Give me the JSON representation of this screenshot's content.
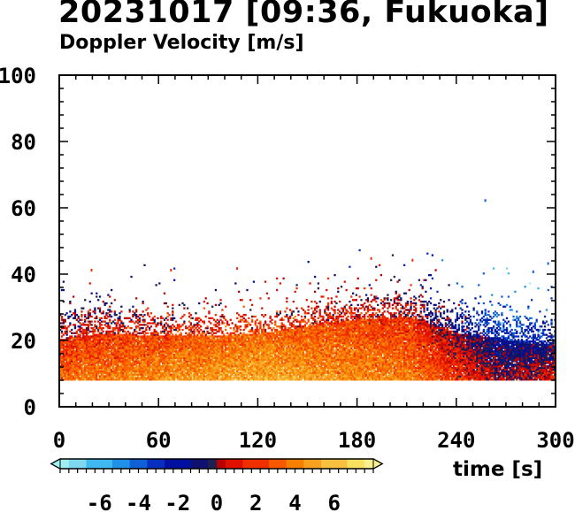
{
  "title": "20231017 [09:36, Fukuoka]",
  "subtitle": "Doppler Velocity [m/s]",
  "colors": {
    "background": "#ffffff",
    "axis": "#000000",
    "palette_neg": [
      "#a0f0f0",
      "#7fd8f0",
      "#40b8f0",
      "#2090e8",
      "#1060d8",
      "#0830c0",
      "#0010a0",
      "#101070",
      "#202050"
    ],
    "palette_pos": [
      "#b80000",
      "#e01000",
      "#f03000",
      "#f85800",
      "#f88000",
      "#f8a020",
      "#f8c040",
      "#f8e060",
      "#f8f090"
    ]
  },
  "chart_data": {
    "type": "heatmap",
    "title": "20231017 [09:36, Fukuoka]",
    "subtitle": "Doppler Velocity [m/s]",
    "xlabel": "time [s]",
    "ylabel": "",
    "xlim": [
      0,
      300
    ],
    "ylim": [
      0,
      100
    ],
    "xticks": [
      "0",
      "60",
      "120",
      "180",
      "240",
      "300"
    ],
    "yticks": [
      "0",
      "20",
      "40",
      "60",
      "80",
      "100"
    ],
    "grid": false,
    "colorbar": {
      "ticks": [
        "-6",
        "-4",
        "-2",
        "0",
        "2",
        "4",
        "6"
      ],
      "range": [
        -8,
        8
      ],
      "orientation": "horizontal",
      "placement": "bottom-left"
    },
    "echo_bottom_height": 8,
    "echo_region": [
      {
        "t": 0,
        "top": 28,
        "dense_top": 20,
        "mean_velocity": 0.5
      },
      {
        "t": 30,
        "top": 30,
        "dense_top": 22,
        "mean_velocity": 1.0
      },
      {
        "t": 60,
        "top": 28,
        "dense_top": 21,
        "mean_velocity": 1.5
      },
      {
        "t": 90,
        "top": 27,
        "dense_top": 21,
        "mean_velocity": 2.0
      },
      {
        "t": 120,
        "top": 28,
        "dense_top": 22,
        "mean_velocity": 2.5
      },
      {
        "t": 150,
        "top": 30,
        "dense_top": 24,
        "mean_velocity": 2.0
      },
      {
        "t": 180,
        "top": 33,
        "dense_top": 26,
        "mean_velocity": 1.5
      },
      {
        "t": 210,
        "top": 34,
        "dense_top": 27,
        "mean_velocity": 1.0
      },
      {
        "t": 240,
        "top": 30,
        "dense_top": 22,
        "mean_velocity": -1.0
      },
      {
        "t": 270,
        "top": 28,
        "dense_top": 20,
        "mean_velocity": -3.0
      },
      {
        "t": 300,
        "top": 26,
        "dense_top": 18,
        "mean_velocity": -2.0
      }
    ]
  }
}
